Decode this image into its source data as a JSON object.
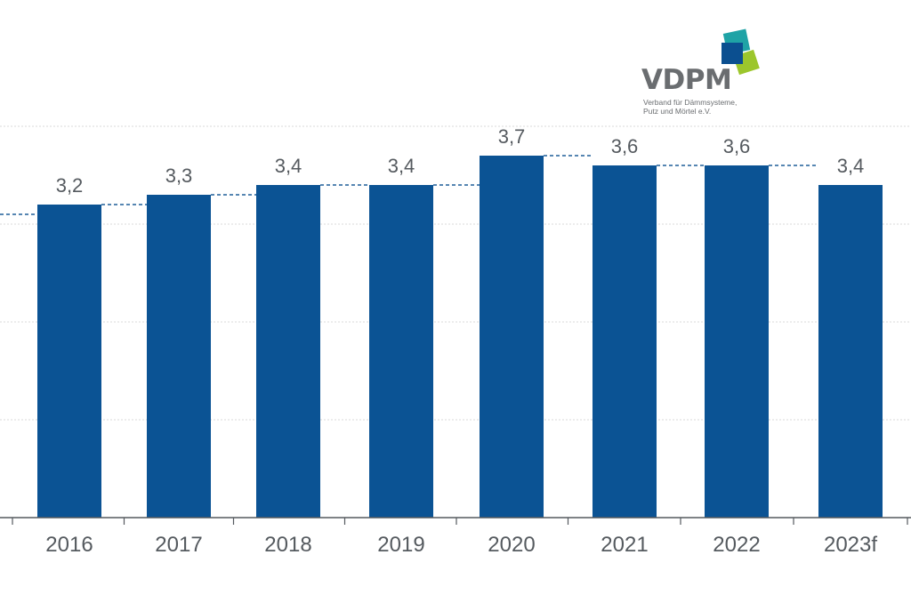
{
  "logo": {
    "name": "VDPM",
    "subtitle_line1": "Verband für Dämmsysteme,",
    "subtitle_line2": "Putz und Mörtel e.V."
  },
  "colors": {
    "bar": "#0b5394",
    "grid": "#d9d9d9",
    "axis": "#555a5f",
    "label": "#555a5f",
    "trend": "#1f5f99"
  },
  "chart_data": {
    "type": "bar",
    "title": "",
    "xlabel": "",
    "ylabel": "",
    "categories": [
      "2016",
      "2017",
      "2018",
      "2019",
      "2020",
      "2021",
      "2022",
      "2023f"
    ],
    "values": [
      3.2,
      3.3,
      3.4,
      3.4,
      3.7,
      3.6,
      3.6,
      3.4
    ],
    "value_labels": [
      "3,2",
      "3,3",
      "3,4",
      "3,4",
      "3,7",
      "3,6",
      "3,6",
      "3,4"
    ],
    "previous_year_reference": [
      3.1,
      3.2,
      3.3,
      3.4,
      3.4,
      3.7,
      3.6,
      3.6
    ],
    "ylim": [
      0,
      4.0
    ],
    "grid": true,
    "legend": "none"
  }
}
